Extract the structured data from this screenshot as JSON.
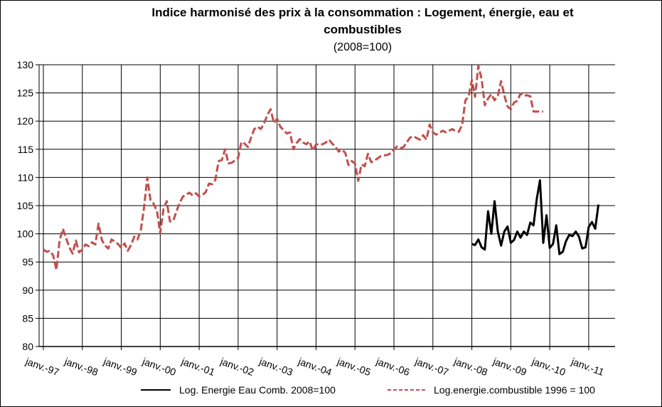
{
  "chart_data": {
    "type": "line",
    "title_line1": "Indice harmonisé des prix à la consommation : Logement, énergie, eau  et",
    "title_line2": "combustibles",
    "subtitle": "(2008=100)",
    "xlabel": "",
    "ylabel": "",
    "ylim": [
      80,
      130
    ],
    "yticks": [
      80,
      85,
      90,
      95,
      100,
      105,
      110,
      115,
      120,
      125,
      130
    ],
    "x_start": "janv.-97",
    "x_end": "janv.-11",
    "xtick_labels": [
      "janv.-97",
      "janv.-98",
      "janv.-99",
      "janv.-00",
      "janv.-01",
      "janv.-02",
      "janv.-03",
      "janv.-04",
      "janv.-05",
      "janv.-06",
      "janv.-07",
      "janv.-08",
      "janv.-09",
      "janv.-10",
      "janv.-11"
    ],
    "grid": true,
    "legend_position": "bottom",
    "series": [
      {
        "name": "Log. Energie Eau Comb. 2008=100",
        "color": "#000000",
        "style": "solid",
        "start": "janv.-08",
        "values": [
          98.2,
          98.0,
          99.0,
          97.6,
          97.2,
          104.0,
          100.0,
          105.8,
          100.4,
          97.9,
          100.4,
          101.3,
          98.4,
          98.9,
          100.4,
          99.3,
          100.4,
          99.8,
          102.0,
          101.5,
          106.2,
          109.5,
          98.4,
          103.3,
          97.5,
          98.2,
          101.5,
          96.4,
          96.8,
          98.7,
          99.8,
          99.6,
          100.4,
          99.5,
          97.4,
          97.6,
          101.2,
          102.1,
          100.9,
          105.2
        ]
      },
      {
        "name": "Log.energie.combustible 1996 = 100",
        "color": "#c0504d",
        "style": "dashed",
        "start": "janv.-97",
        "values": [
          97.2,
          96.8,
          97.0,
          96.2,
          93.6,
          98.8,
          100.9,
          99.2,
          97.6,
          96.5,
          98.8,
          96.7,
          97.2,
          98.1,
          97.8,
          98.5,
          98.1,
          101.8,
          98.9,
          97.9,
          97.4,
          99.0,
          98.6,
          98.2,
          97.5,
          98.3,
          97.0,
          98.0,
          99.5,
          99.0,
          100.6,
          104.6,
          110.0,
          106.0,
          105.3,
          104.0,
          100.1,
          104.4,
          105.8,
          102.2,
          102.3,
          104.0,
          105.5,
          106.6,
          107.0,
          107.3,
          106.8,
          107.2,
          106.6,
          106.9,
          107.4,
          108.9,
          108.8,
          109.6,
          112.9,
          113.1,
          115.0,
          112.5,
          112.6,
          113.0,
          113.5,
          116.3,
          116.0,
          115.4,
          117.1,
          118.6,
          119.0,
          118.6,
          119.6,
          121.1,
          122.1,
          119.7,
          120.4,
          119.0,
          118.4,
          117.8,
          118.0,
          115.0,
          116.1,
          116.8,
          116.2,
          115.9,
          116.4,
          114.8,
          115.9,
          115.8,
          115.9,
          116.2,
          116.7,
          116.0,
          115.4,
          114.6,
          114.9,
          114.4,
          112.2,
          112.9,
          112.5,
          109.4,
          112.3,
          112.0,
          114.2,
          112.7,
          113.0,
          113.4,
          113.8,
          113.9,
          114.0,
          114.3,
          115.0,
          115.5,
          115.2,
          115.4,
          116.3,
          117.1,
          117.3,
          117.0,
          116.7,
          117.5,
          116.7,
          119.4,
          118.0,
          117.6,
          117.9,
          118.3,
          118.0,
          118.3,
          118.6,
          118.2,
          118.1,
          119.3,
          123.7,
          124.3,
          127.3,
          124.3,
          129.8,
          127.5,
          122.8,
          124.0,
          124.8,
          123.7,
          124.5,
          127.1,
          124.6,
          122.6,
          122.1,
          123.3,
          123.6,
          124.9,
          124.5,
          124.6,
          124.4,
          121.7,
          121.7,
          121.7,
          121.7
        ]
      }
    ]
  }
}
